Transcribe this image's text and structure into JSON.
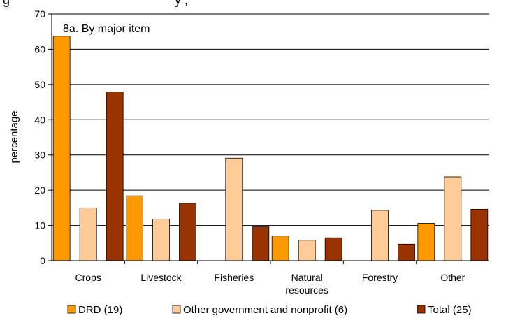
{
  "chart_data": {
    "type": "bar",
    "title_fragment": "g",
    "title_fragment_2": "y  ,",
    "annotation": "8a. By major item",
    "ylabel": "percentage",
    "xlabel": "",
    "ylim": [
      0,
      70
    ],
    "yticks": [
      0,
      10,
      20,
      30,
      40,
      50,
      60,
      70
    ],
    "grid": true,
    "legend_position": "bottom",
    "categories": [
      [
        "Crops"
      ],
      [
        "Livestock"
      ],
      [
        "Fisheries"
      ],
      [
        "Natural",
        "resources"
      ],
      [
        "Forestry"
      ],
      [
        "Other"
      ]
    ],
    "series": [
      {
        "name": "DRD (19)",
        "color": "#ff9900",
        "values": [
          63.7,
          18.4,
          0,
          7.0,
          0,
          10.6
        ]
      },
      {
        "name": "Other government and nonprofit (6)",
        "color": "#ffcc99",
        "values": [
          15.0,
          11.8,
          29.1,
          5.8,
          14.3,
          23.8
        ]
      },
      {
        "name": "Total (25)",
        "color": "#993300",
        "values": [
          47.9,
          16.3,
          9.6,
          6.5,
          4.7,
          14.6
        ]
      }
    ]
  }
}
